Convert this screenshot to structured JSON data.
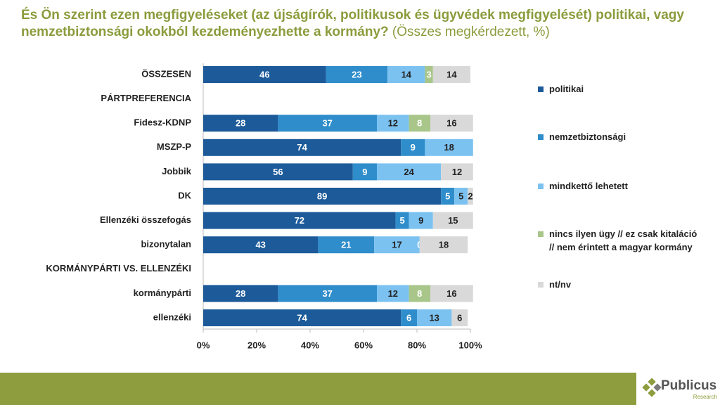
{
  "chart_data": {
    "type": "stacked-bar-horizontal",
    "title": "És Ön szerint ezen megfigyeléseket (az újságírók, politikusok és ügyvédek megfigyelését) politikai, vagy nemzetbiztonsági okokból kezdeményezhette a kormány?",
    "subtitle": "(Összes megkérdezett, %)",
    "categories": [
      "ÖSSZESEN",
      "PÁRTPREFERENCIA",
      "Fidesz-KDNP",
      "MSZP-P",
      "Jobbik",
      "DK",
      "Ellenzéki összefogás",
      "bizonytalan",
      "KORMÁNYPÁRTI VS. ELLENZÉKI",
      "kormánypárti",
      "ellenzéki"
    ],
    "series": [
      {
        "name": "politikai",
        "color": "#1c5a99",
        "label_color": "#ffffff",
        "values": [
          46,
          null,
          28,
          74,
          56,
          89,
          72,
          43,
          null,
          28,
          74
        ]
      },
      {
        "name": "nemzetbiztonsági",
        "color": "#2f8dcb",
        "label_color": "#ffffff",
        "values": [
          23,
          null,
          37,
          9,
          9,
          5,
          5,
          21,
          null,
          37,
          6
        ]
      },
      {
        "name": "mindkettő lehetett",
        "color": "#7cc2f1",
        "label_color": "#222222",
        "values": [
          14,
          null,
          12,
          18,
          24,
          5,
          9,
          17,
          null,
          12,
          13
        ]
      },
      {
        "name": "nincs ilyen ügy // ez csak kitaláció // nem érintett a magyar kormány",
        "color": "#a8c68a",
        "label_color": "#ffffff",
        "values": [
          3,
          null,
          8,
          null,
          null,
          null,
          null,
          0,
          null,
          8,
          null
        ]
      },
      {
        "name": "nt/nv",
        "color": "#d9d9d9",
        "label_color": "#222222",
        "values": [
          14,
          null,
          16,
          null,
          12,
          2,
          15,
          18,
          null,
          16,
          6
        ]
      }
    ],
    "xlim": [
      0,
      100
    ],
    "xticks": [
      {
        "value": 0,
        "label": "0%"
      },
      {
        "value": 20,
        "label": "20%"
      },
      {
        "value": 40,
        "label": "40%"
      },
      {
        "value": 60,
        "label": "60%"
      },
      {
        "value": 80,
        "label": "80%"
      },
      {
        "value": 100,
        "label": "100%"
      }
    ],
    "legend": "right"
  },
  "logo": {
    "name": "Publicus",
    "sub": "Research"
  }
}
